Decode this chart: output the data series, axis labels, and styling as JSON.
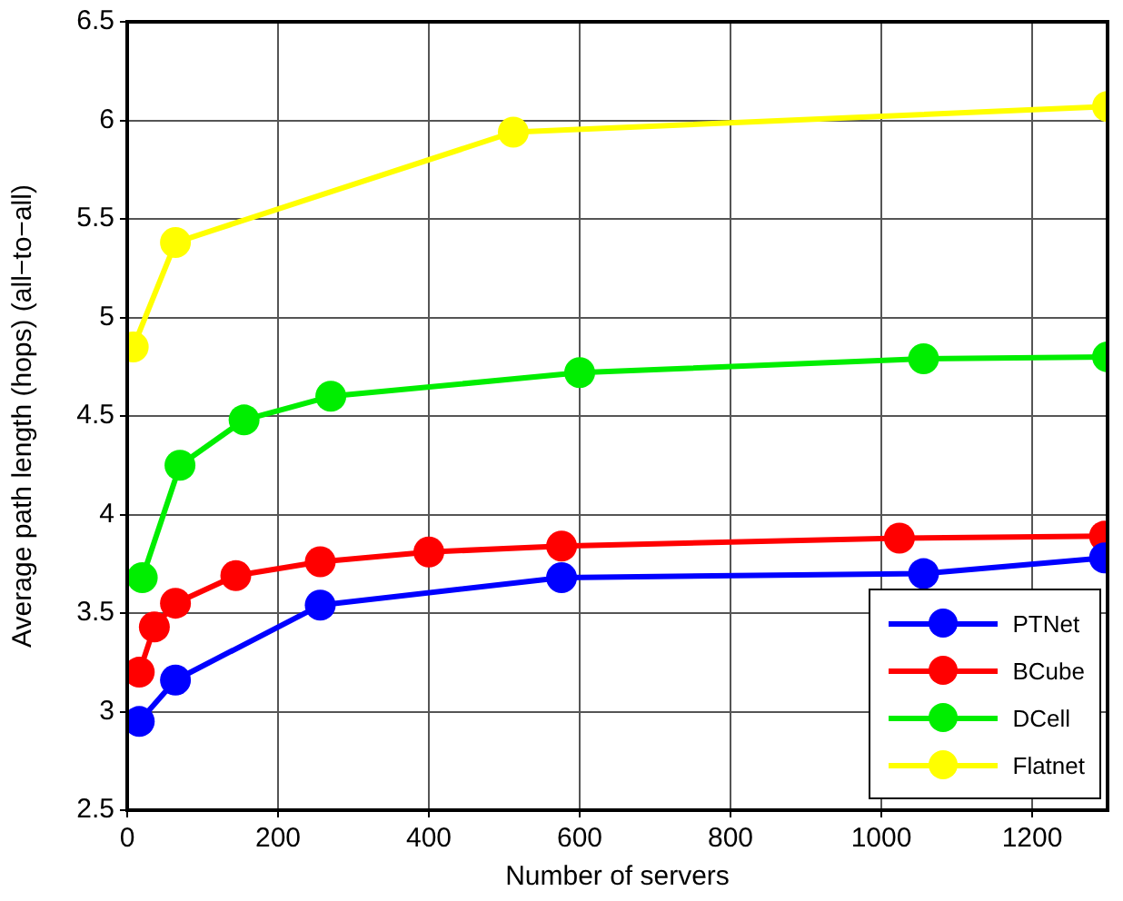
{
  "chart_data": {
    "type": "line",
    "xlabel": "Number of servers",
    "ylabel": "Average path length (hops) (all−to−all)",
    "xlim": [
      0,
      1300
    ],
    "xticks": [
      0,
      200,
      400,
      600,
      800,
      1000,
      1200
    ],
    "ylim": [
      2.5,
      6.5
    ],
    "yticks": [
      2.5,
      3,
      3.5,
      4,
      4.5,
      5,
      5.5,
      6,
      6.5
    ],
    "grid": true,
    "legend": "bottom right",
    "marker": "circle",
    "line_style": "solid",
    "series": [
      {
        "name": "PTNet",
        "color": "#0000ff",
        "x": [
          16,
          64,
          256,
          576,
          1056,
          1296
        ],
        "values": [
          2.95,
          3.16,
          3.54,
          3.68,
          3.7,
          3.78
        ]
      },
      {
        "name": "BCube",
        "color": "#ff0000",
        "x": [
          16,
          36,
          64,
          144,
          256,
          400,
          576,
          1024,
          1296
        ],
        "values": [
          3.2,
          3.43,
          3.55,
          3.69,
          3.76,
          3.81,
          3.84,
          3.88,
          3.89
        ]
      },
      {
        "name": "DCell",
        "color": "#00ee00",
        "x": [
          20,
          70,
          155,
          270,
          600,
          1056,
          1300
        ],
        "values": [
          3.68,
          4.25,
          4.48,
          4.6,
          4.72,
          4.79,
          4.8
        ]
      },
      {
        "name": "Flatnet",
        "color": "#ffff00",
        "x": [
          8,
          64,
          512,
          1300
        ],
        "values": [
          4.85,
          5.38,
          5.94,
          6.07
        ]
      }
    ]
  }
}
